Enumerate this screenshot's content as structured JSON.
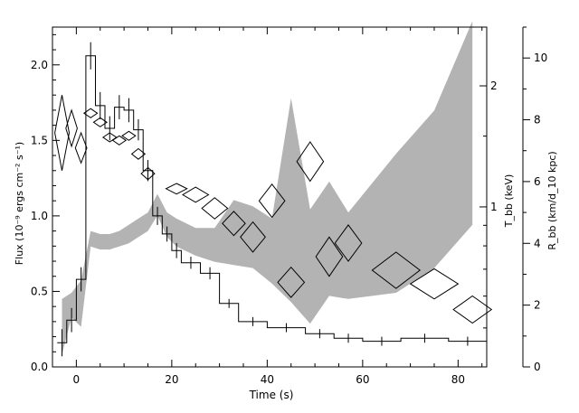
{
  "chart_data": {
    "type": "line",
    "title": "",
    "xlabel": "Time (s)",
    "ylabel": "Flux (10⁻⁹ ergs cm⁻² s⁻¹)",
    "ylabel_right_1": "T_bb (keV)",
    "ylabel_right_2": "R_bb (km/d_10 kpc)",
    "xlim": [
      -5,
      86
    ],
    "ylim": [
      0,
      2.25
    ],
    "x_ticks": [
      0,
      20,
      40,
      60,
      80
    ],
    "x_tick_labels": [
      "0",
      "20",
      "40",
      "60",
      "80"
    ],
    "y_ticks": [
      0,
      0.5,
      1.0,
      1.5,
      2.0
    ],
    "y_tick_labels": [
      "0.0",
      "0.5",
      "1.0",
      "1.5",
      "2.0"
    ],
    "t_axis": {
      "scale": "log",
      "label": "T_bb (keV)",
      "ticks": [
        1,
        2
      ],
      "tick_labels": [
        "1",
        "2"
      ]
    },
    "r_axis": {
      "scale": "linear",
      "range": [
        0,
        11
      ],
      "label": "R_bb (km/d_10 kpc)",
      "ticks": [
        0,
        2,
        4,
        6,
        8,
        10
      ],
      "tick_labels": [
        "0",
        "2",
        "4",
        "6",
        "8",
        "10"
      ]
    },
    "series": [
      {
        "kind": "flux_histogram",
        "steps": [
          [
            -4,
            -2,
            0.16
          ],
          [
            -2,
            0,
            0.31
          ],
          [
            0,
            2,
            0.58
          ],
          [
            2,
            4,
            2.06
          ],
          [
            4,
            6,
            1.73
          ],
          [
            6,
            8,
            1.58
          ],
          [
            8,
            10,
            1.72
          ],
          [
            10,
            12,
            1.7
          ],
          [
            12,
            14,
            1.57
          ],
          [
            14,
            16,
            1.3
          ],
          [
            16,
            18,
            1.0
          ],
          [
            18,
            20,
            0.88
          ],
          [
            20,
            22,
            0.77
          ],
          [
            22,
            26,
            0.69
          ],
          [
            26,
            30,
            0.62
          ],
          [
            30,
            34,
            0.42
          ],
          [
            34,
            40,
            0.3
          ],
          [
            40,
            48,
            0.26
          ],
          [
            48,
            54,
            0.22
          ],
          [
            54,
            60,
            0.19
          ],
          [
            60,
            68,
            0.17
          ],
          [
            68,
            78,
            0.19
          ],
          [
            78,
            86,
            0.17
          ]
        ],
        "errors": [
          [
            -3,
            0.16,
            0.09
          ],
          [
            -1,
            0.31,
            0.08
          ],
          [
            1,
            0.58,
            0.08
          ],
          [
            3,
            2.06,
            0.09
          ],
          [
            5,
            1.73,
            0.09
          ],
          [
            7,
            1.58,
            0.08
          ],
          [
            9,
            1.72,
            0.08
          ],
          [
            11,
            1.7,
            0.08
          ],
          [
            13,
            1.57,
            0.07
          ],
          [
            15,
            1.3,
            0.07
          ],
          [
            17,
            1.0,
            0.06
          ],
          [
            19,
            0.88,
            0.05
          ],
          [
            21,
            0.77,
            0.05
          ],
          [
            24,
            0.69,
            0.04
          ],
          [
            28,
            0.62,
            0.04
          ],
          [
            32,
            0.42,
            0.03
          ],
          [
            37,
            0.3,
            0.03
          ],
          [
            44,
            0.26,
            0.03
          ],
          [
            51,
            0.22,
            0.03
          ],
          [
            57,
            0.19,
            0.03
          ],
          [
            64,
            0.17,
            0.03
          ],
          [
            73,
            0.19,
            0.03
          ],
          [
            82,
            0.17,
            0.03
          ]
        ]
      },
      {
        "kind": "temperature_diamonds",
        "unit": "keV",
        "points": [
          [
            -3,
            1.55,
            1.5,
            0.25
          ],
          [
            -1,
            1.58,
            1.2,
            0.12
          ],
          [
            1,
            1.45,
            1.2,
            0.1
          ],
          [
            3,
            1.68,
            1.4,
            0.03
          ],
          [
            5,
            1.62,
            1.4,
            0.03
          ],
          [
            7,
            1.52,
            1.4,
            0.03
          ],
          [
            9,
            1.5,
            1.4,
            0.03
          ],
          [
            11,
            1.53,
            1.4,
            0.03
          ],
          [
            13,
            1.41,
            1.4,
            0.035
          ],
          [
            15,
            1.28,
            1.4,
            0.04
          ],
          [
            21,
            1.18,
            2.2,
            0.035
          ],
          [
            25,
            1.14,
            2.7,
            0.05
          ],
          [
            29,
            1.05,
            2.7,
            0.07
          ],
          [
            33,
            0.95,
            2.4,
            0.08
          ],
          [
            37,
            0.86,
            2.6,
            0.1
          ],
          [
            41,
            1.1,
            2.7,
            0.11
          ],
          [
            45,
            0.56,
            2.8,
            0.1
          ],
          [
            49,
            1.36,
            2.8,
            0.13
          ],
          [
            53,
            0.73,
            2.8,
            0.13
          ],
          [
            57,
            0.82,
            2.8,
            0.12
          ],
          [
            67,
            0.64,
            5.0,
            0.12
          ],
          [
            75,
            0.55,
            5.0,
            0.1
          ],
          [
            83,
            0.38,
            4.0,
            0.09
          ]
        ]
      },
      {
        "kind": "radius_band",
        "unit": "km/d_10 kpc",
        "x": [
          -3,
          -1,
          1,
          3,
          5,
          7,
          9,
          11,
          13,
          15,
          17,
          19,
          21,
          25,
          29,
          33,
          37,
          41,
          45,
          49,
          53,
          57,
          67,
          75,
          83
        ],
        "lower": [
          0.4,
          1.6,
          1.3,
          3.9,
          3.8,
          3.8,
          3.9,
          4.0,
          4.2,
          4.4,
          4.9,
          4.2,
          3.9,
          3.6,
          3.4,
          3.3,
          3.2,
          2.7,
          2.1,
          1.4,
          2.3,
          2.2,
          2.4,
          3.2,
          4.6
        ],
        "upper": [
          2.2,
          2.4,
          2.8,
          4.4,
          4.3,
          4.3,
          4.4,
          4.6,
          4.8,
          5.0,
          5.6,
          5.0,
          4.8,
          4.5,
          4.5,
          5.4,
          5.2,
          4.8,
          8.7,
          5.1,
          6.0,
          5.0,
          6.9,
          8.3,
          11.2
        ]
      }
    ],
    "grid": false,
    "legend": "none"
  }
}
